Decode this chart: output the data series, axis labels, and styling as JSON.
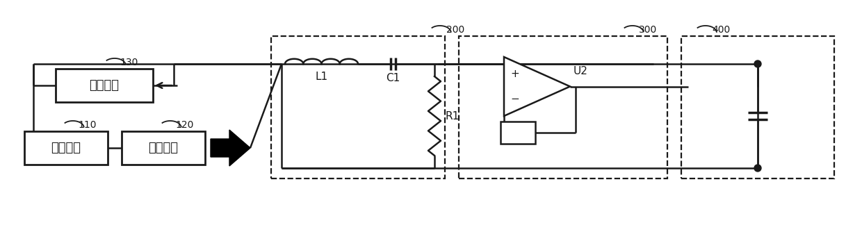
{
  "bg_color": "#ffffff",
  "line_color": "#1a1a1a",
  "text_detect": "检测单元",
  "text_control": "控制单元",
  "text_drive": "驱动单元",
  "text_L1": "L1",
  "text_C1": "C1",
  "text_R1": "R1",
  "text_U2": "U2",
  "label_130": "130",
  "label_110": "110",
  "label_120": "120",
  "label_200": "200",
  "label_300": "300",
  "label_400": "400",
  "figsize": [
    12.4,
    3.47
  ],
  "dpi": 100,
  "xlim": [
    0,
    1240
  ],
  "ylim": [
    0,
    347
  ]
}
